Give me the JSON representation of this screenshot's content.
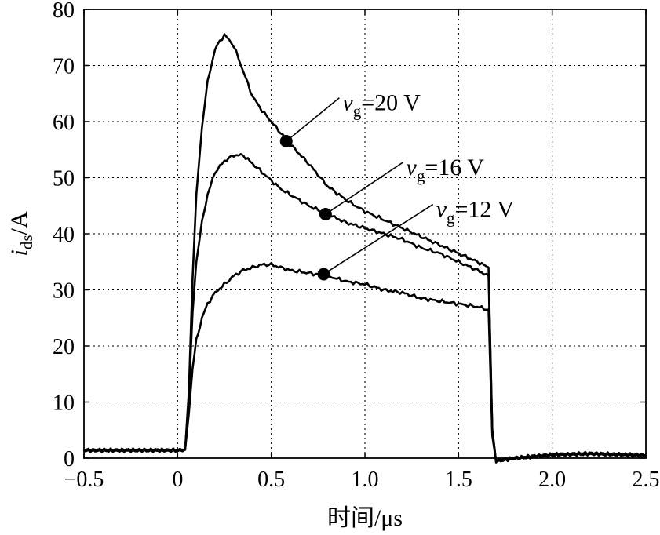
{
  "chart_data": {
    "type": "line",
    "title": "",
    "xlabel": "时间/μs",
    "ylabel": {
      "var": "i",
      "sub": "ds",
      "unit": "/A"
    },
    "xlim": [
      -0.5,
      2.5
    ],
    "ylim": [
      0,
      80
    ],
    "xticks": [
      -0.5,
      0,
      0.5,
      1.0,
      1.5,
      2.0,
      2.5
    ],
    "xtick_labels": [
      "−0.5",
      "0",
      "0.5",
      "1.0",
      "1.5",
      "2.0",
      "2.5"
    ],
    "yticks": [
      0,
      10,
      20,
      30,
      40,
      50,
      60,
      70,
      80
    ],
    "ytick_labels": [
      "0",
      "10",
      "20",
      "30",
      "40",
      "50",
      "60",
      "70",
      "80"
    ],
    "grid": true,
    "series": [
      {
        "name": "vg=20 V",
        "label": {
          "var": "v",
          "sub": "g",
          "text": "=20 V"
        },
        "marker": {
          "x": 0.58,
          "y": 56.5
        },
        "x": [
          -0.5,
          0.0,
          0.04,
          0.06,
          0.08,
          0.1,
          0.13,
          0.16,
          0.2,
          0.25,
          0.3,
          0.35,
          0.4,
          0.45,
          0.5,
          0.55,
          0.6,
          0.7,
          0.8,
          0.9,
          1.0,
          1.1,
          1.2,
          1.3,
          1.4,
          1.5,
          1.6,
          1.66,
          1.68,
          1.7,
          1.8,
          2.0,
          2.2,
          2.5
        ],
        "y": [
          1.4,
          1.4,
          1.5,
          12,
          32,
          47,
          59,
          67,
          73,
          75.5,
          73.5,
          69,
          64.5,
          62,
          60,
          58,
          56,
          52.5,
          48.5,
          46,
          44,
          42.5,
          41,
          39.5,
          38,
          36.5,
          35,
          34,
          5,
          -0.5,
          0,
          0.6,
          0.8,
          0.5
        ]
      },
      {
        "name": "vg=16 V",
        "label": {
          "var": "v",
          "sub": "g",
          "text": "=16 V"
        },
        "marker": {
          "x": 0.79,
          "y": 43.5
        },
        "x": [
          -0.5,
          0.0,
          0.04,
          0.06,
          0.08,
          0.1,
          0.13,
          0.16,
          0.2,
          0.25,
          0.3,
          0.35,
          0.4,
          0.45,
          0.5,
          0.55,
          0.6,
          0.7,
          0.8,
          0.9,
          1.0,
          1.1,
          1.2,
          1.3,
          1.4,
          1.5,
          1.6,
          1.66,
          1.68,
          1.7,
          1.8,
          2.0,
          2.2,
          2.5
        ],
        "y": [
          1.4,
          1.4,
          1.5,
          11,
          26,
          35,
          42,
          47,
          51,
          53,
          54,
          54,
          52.5,
          51,
          49.5,
          48,
          47,
          45,
          43.5,
          42,
          41,
          40,
          39,
          37.5,
          36.5,
          35,
          33.5,
          32.5,
          5,
          -0.5,
          0,
          0.6,
          0.8,
          0.5
        ]
      },
      {
        "name": "vg=12 V",
        "label": {
          "var": "v",
          "sub": "g",
          "text": "=12 V"
        },
        "marker": {
          "x": 0.78,
          "y": 32.8
        },
        "x": [
          -0.5,
          0.0,
          0.04,
          0.06,
          0.08,
          0.1,
          0.13,
          0.16,
          0.2,
          0.25,
          0.3,
          0.35,
          0.4,
          0.45,
          0.5,
          0.55,
          0.6,
          0.7,
          0.8,
          0.9,
          1.0,
          1.1,
          1.2,
          1.3,
          1.4,
          1.5,
          1.6,
          1.66,
          1.68,
          1.7,
          1.8,
          2.0,
          2.2,
          2.5
        ],
        "y": [
          1.4,
          1.4,
          1.5,
          8,
          16,
          21,
          25,
          27.5,
          29.5,
          31,
          32.5,
          33.5,
          34,
          34.5,
          34.5,
          34,
          33.5,
          33,
          32.5,
          31.5,
          31,
          30,
          29.5,
          28.5,
          28,
          27.5,
          27,
          26.5,
          4,
          -0.5,
          0,
          0.6,
          0.8,
          0.5
        ]
      }
    ],
    "annotations": [
      {
        "series": 0,
        "text_at": {
          "x": 0.88,
          "y": 62
        },
        "text_baseline_y": 62
      },
      {
        "series": 1,
        "text_at": {
          "x": 1.22,
          "y": 50.5
        },
        "text_baseline_y": 50.5
      },
      {
        "series": 2,
        "text_at": {
          "x": 1.38,
          "y": 43
        },
        "text_baseline_y": 43
      }
    ]
  }
}
